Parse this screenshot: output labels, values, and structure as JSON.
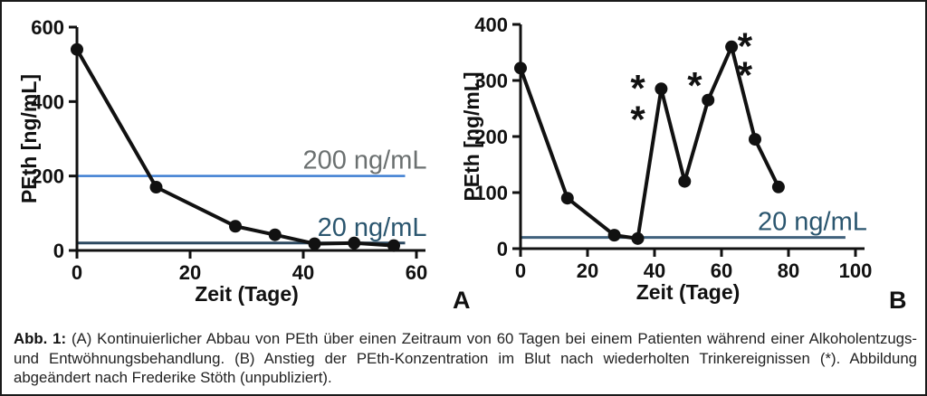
{
  "figure": {
    "caption_label": "Abb. 1:",
    "caption_text": " (A) Kontinuierlicher Abbau von PEth über einen Zeitraum von 60 Tagen bei einem Patienten während einer Alkoholentzugs- und Entwöhnungsbehandlung. (B) Anstieg der PEth-Konzentration im Blut nach wiederholten Trinkereignissen (*). Abbildung abgeändert nach Frederike Stöth (unpubliziert)."
  },
  "chart_data": [
    {
      "id": "A",
      "type": "line",
      "panel_label": "A",
      "xlabel": "Zeit (Tage)",
      "ylabel": "PEth [ng/mL]",
      "xlim": [
        0,
        60
      ],
      "ylim": [
        0,
        600
      ],
      "xticks": [
        0,
        20,
        40,
        60
      ],
      "yticks": [
        0,
        200,
        400,
        600
      ],
      "grid": false,
      "x": [
        0,
        14,
        28,
        35,
        42,
        49,
        56
      ],
      "y": [
        540,
        170,
        65,
        42,
        18,
        20,
        13
      ],
      "series_color": "#111111",
      "reference_lines": [
        {
          "value": 200,
          "label": "200 ng/mL",
          "span": [
            0,
            58
          ],
          "line_color": "#3e7ed2",
          "label_color": "#6b7070",
          "line_width": 2.5
        },
        {
          "value": 20,
          "label": "20 ng/mL",
          "span": [
            0,
            58
          ],
          "line_color": "#2c4960",
          "label_color": "#2b566f",
          "line_width": 3
        }
      ],
      "annotations": []
    },
    {
      "id": "B",
      "type": "line",
      "panel_label": "B",
      "xlabel": "Zeit (Tage)",
      "ylabel": "PEth [ng/mL]",
      "xlim": [
        0,
        100
      ],
      "ylim": [
        0,
        400
      ],
      "xticks": [
        0,
        20,
        40,
        60,
        80,
        100
      ],
      "yticks": [
        0,
        100,
        200,
        300,
        400
      ],
      "grid": false,
      "x": [
        0,
        14,
        28,
        35,
        42,
        49,
        56,
        63,
        70,
        77
      ],
      "y": [
        322,
        90,
        24,
        18,
        285,
        120,
        265,
        360,
        195,
        110
      ],
      "series_color": "#111111",
      "reference_lines": [
        {
          "value": 20,
          "label": "20 ng/mL",
          "span": [
            0,
            97
          ],
          "line_color": "#40617c",
          "label_color": "#2b566f",
          "line_width": 3
        }
      ],
      "annotations": [
        {
          "x": 35,
          "y": 298,
          "text": "*"
        },
        {
          "x": 35,
          "y": 243,
          "text": "*"
        },
        {
          "x": 52,
          "y": 303,
          "text": "*"
        },
        {
          "x": 67,
          "y": 373,
          "text": "*"
        },
        {
          "x": 67,
          "y": 322,
          "text": "*"
        }
      ]
    }
  ]
}
